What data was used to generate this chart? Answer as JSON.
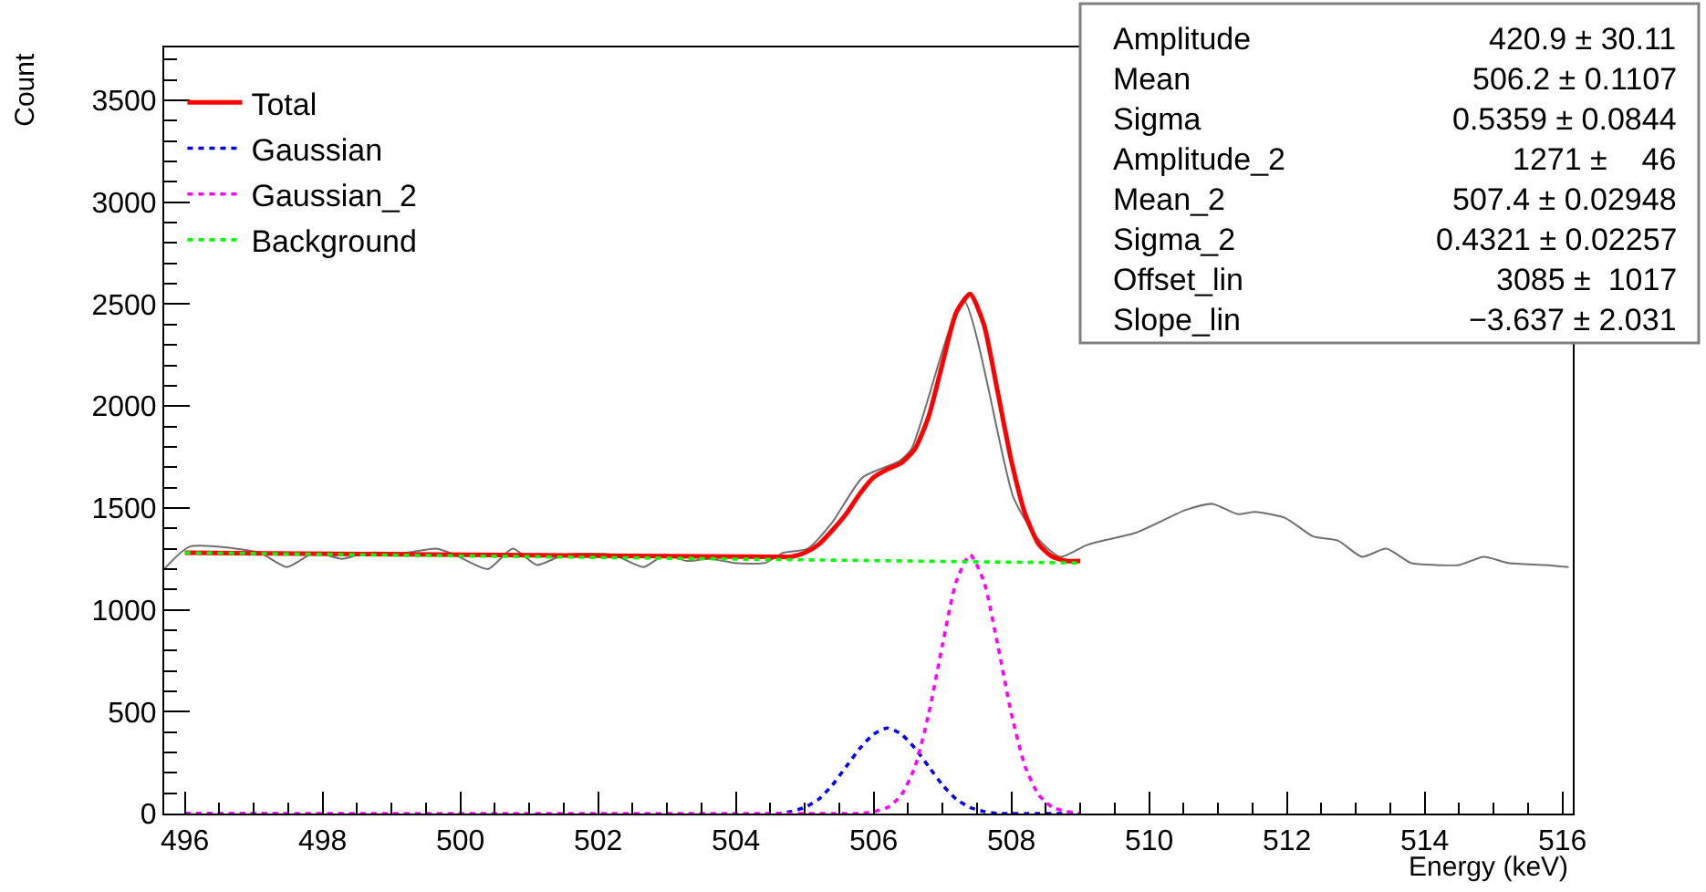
{
  "chart_data": {
    "type": "line",
    "xlabel": "Energy (keV)",
    "ylabel": "Count",
    "xlim": [
      495.7,
      516.15
    ],
    "xticks": [
      496,
      498,
      500,
      502,
      504,
      506,
      508,
      510,
      512,
      514,
      516
    ],
    "ylim": [
      0,
      3760
    ],
    "yticks": [
      0,
      500,
      1000,
      1500,
      2000,
      2500,
      3000,
      3500
    ],
    "legend": "top left",
    "marker": "none",
    "series": [
      {
        "color": "#707070",
        "line_style": "solid",
        "x": [
          495.7,
          496.07,
          497.08,
          497.48,
          497.88,
          498.28,
          498.63,
          499.21,
          499.65,
          499.92,
          500.4,
          500.76,
          501.11,
          501.51,
          502.21,
          502.66,
          502.97,
          503.28,
          503.63,
          503.98,
          504.42,
          504.69,
          505.04,
          505.4,
          505.84,
          506.37,
          506.55,
          507.3,
          508.03,
          508.38,
          508.71,
          509.11,
          509.82,
          510.53,
          510.92,
          511.28,
          511.54,
          511.98,
          512.38,
          512.74,
          513.09,
          513.44,
          513.8,
          514.15,
          514.5,
          514.86,
          515.21,
          515.74,
          516.09
        ],
        "values": [
          1200,
          1310,
          1280,
          1210,
          1280,
          1250,
          1280,
          1280,
          1300,
          1270,
          1200,
          1300,
          1220,
          1270,
          1270,
          1210,
          1270,
          1240,
          1250,
          1230,
          1230,
          1280,
          1300,
          1430,
          1650,
          1730,
          1790,
          2520,
          1550,
          1350,
          1260,
          1320,
          1380,
          1490,
          1520,
          1470,
          1480,
          1450,
          1360,
          1340,
          1260,
          1300,
          1230,
          1220,
          1220,
          1260,
          1230,
          1220,
          1210
        ]
      },
      {
        "name": "Total",
        "color": "#ff0000",
        "line_style": "solid",
        "x": [
          496,
          504.6,
          504.8,
          505.0,
          505.2,
          505.4,
          505.6,
          505.8,
          506.0,
          506.2,
          506.4,
          506.6,
          506.8,
          507.0,
          507.2,
          507.4,
          507.6,
          507.8,
          508.0,
          508.2,
          508.4,
          508.6,
          508.8,
          509.0
        ],
        "values": [
          1280,
          1260,
          1260,
          1280,
          1320,
          1390,
          1470,
          1570,
          1650,
          1690,
          1720,
          1790,
          1950,
          2210,
          2460,
          2550,
          2400,
          2070,
          1730,
          1470,
          1320,
          1260,
          1240,
          1240
        ]
      },
      {
        "name": "Gaussian",
        "color": "#0000ff",
        "line_style": "dotted",
        "x": [
          496,
          504.6,
          504.8,
          505.0,
          505.2,
          505.4,
          505.6,
          505.8,
          506.0,
          506.2,
          506.4,
          506.6,
          506.8,
          507.0,
          507.2,
          507.4,
          507.6,
          507.8,
          508.0,
          508.2,
          508.4,
          508.6,
          508.8,
          509.0
        ],
        "values": [
          0,
          0,
          10,
          30,
          70,
          140,
          230,
          320,
          390,
          420,
          390,
          320,
          230,
          140,
          70,
          30,
          10,
          0,
          0,
          0,
          0,
          0,
          0,
          0
        ]
      },
      {
        "name": "Gaussian_2",
        "color": "#ff00ff",
        "line_style": "dotted",
        "x": [
          496,
          504.6,
          504.8,
          505.0,
          505.2,
          505.4,
          505.6,
          505.8,
          506.0,
          506.2,
          506.4,
          506.6,
          506.8,
          507.0,
          507.2,
          507.4,
          507.6,
          507.8,
          508.0,
          508.2,
          508.4,
          508.6,
          508.8,
          509.0
        ],
        "values": [
          0,
          0,
          0,
          0,
          0,
          0,
          0,
          0,
          10,
          30,
          90,
          230,
          490,
          830,
          1140,
          1270,
          1140,
          830,
          490,
          230,
          90,
          30,
          10,
          0
        ]
      },
      {
        "name": "Background",
        "color": "#00ff00",
        "line_style": "dotted",
        "x": [
          496,
          509.0
        ],
        "values": [
          1280,
          1230
        ]
      }
    ],
    "annotations": [
      "Amplitude",
      "420.9 ± 30.11",
      "Mean",
      "506.2 ± 0.1107",
      "Sigma",
      "0.5359 ± 0.0844",
      "Amplitude_2",
      "1271 ±    46",
      "Mean_2",
      "507.4 ± 0.02948",
      "Sigma_2",
      "0.4321 ± 0.02257",
      "Offset_lin",
      "3085 ±  1017",
      "Slope_lin",
      "−3.637 ± 2.031"
    ]
  }
}
